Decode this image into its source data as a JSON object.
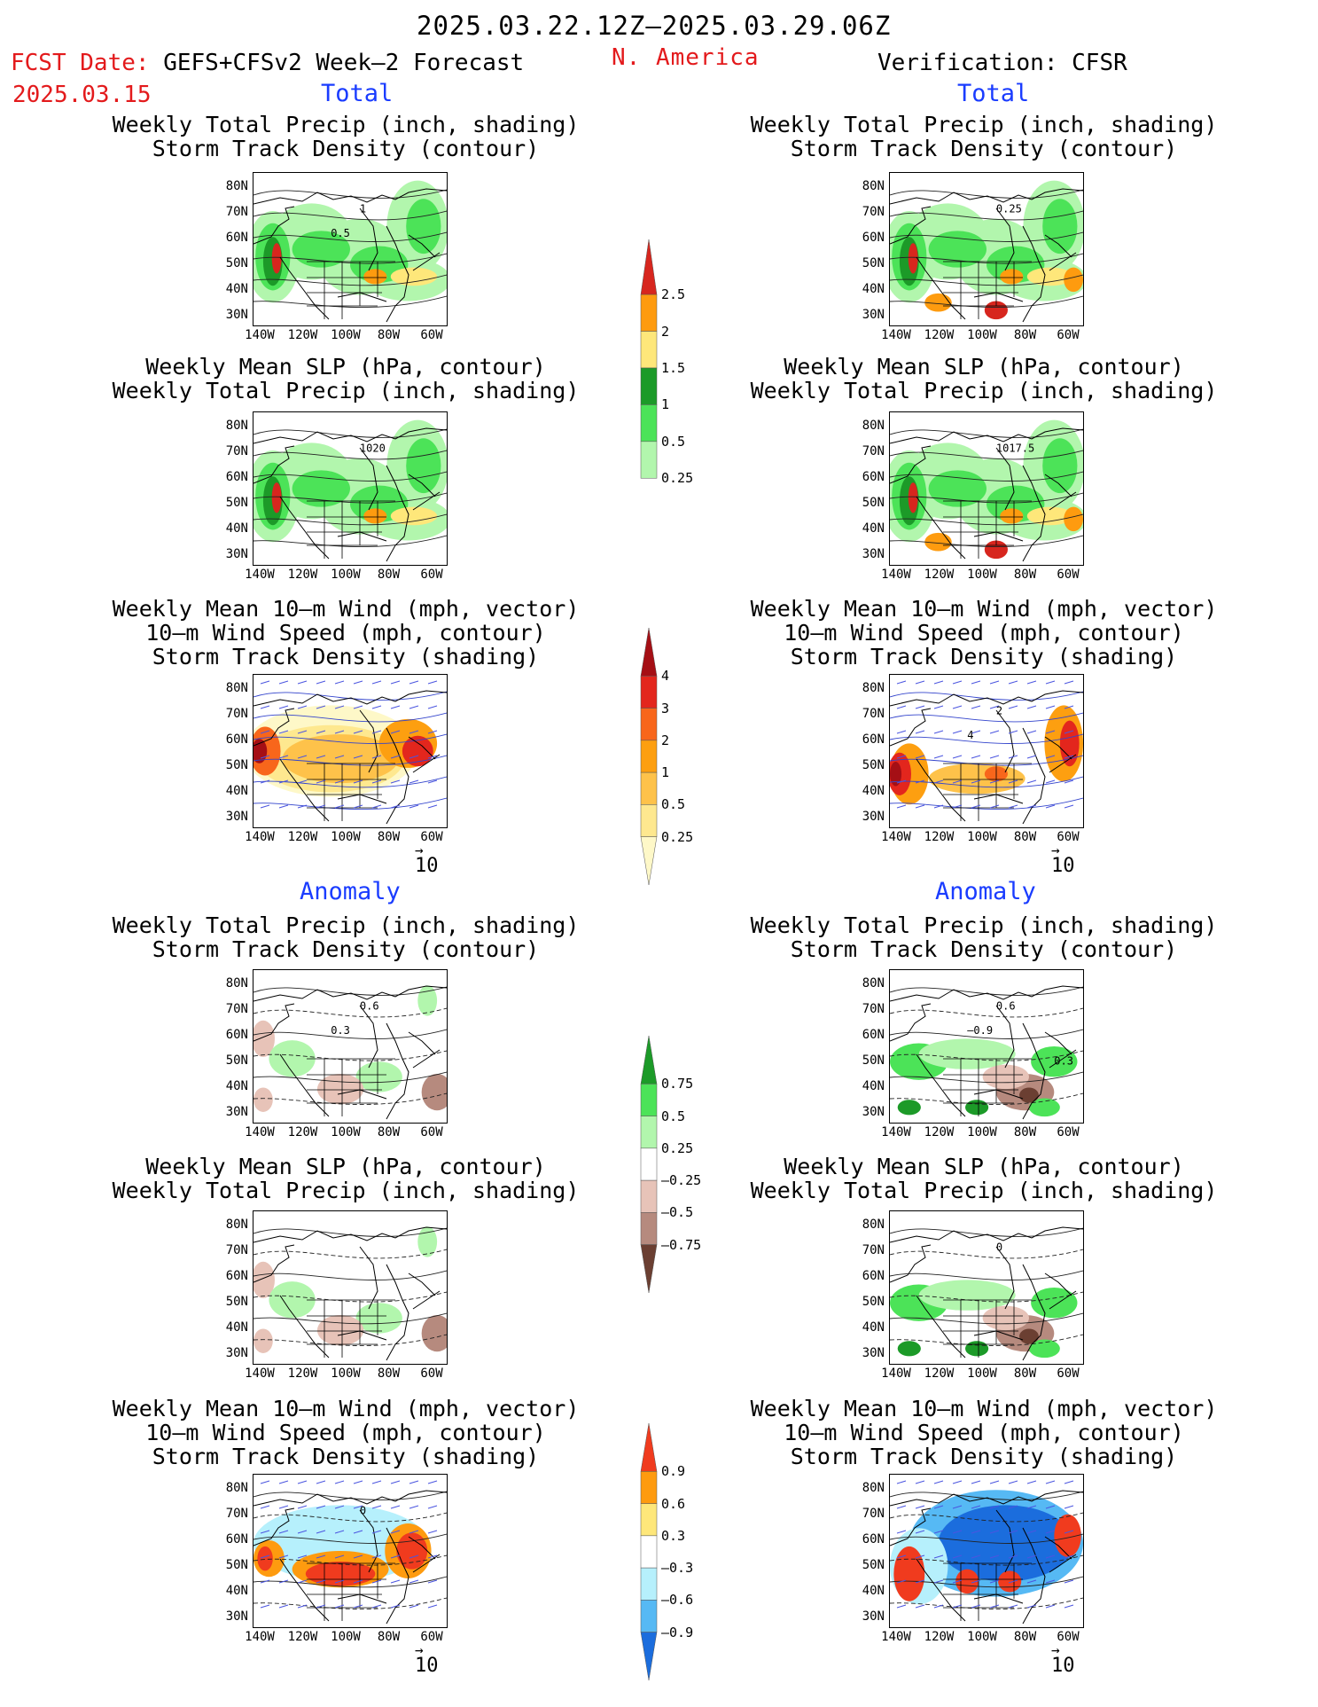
{
  "header": {
    "date_range": "2025.03.22.12Z–2025.03.29.06Z",
    "fcst_label": "FCST Date:",
    "fcst_model": "GEFS+CFSv2 Week–2 Forecast",
    "fcst_date": "2025.03.15",
    "region": "N. America",
    "verification": "Verification: CFSR"
  },
  "sections": {
    "total": "Total",
    "anomaly": "Anomaly"
  },
  "titles": {
    "precip_storm": [
      "Weekly Total Precip (inch, shading)",
      "Storm Track Density (contour)"
    ],
    "slp_precip": [
      "Weekly Mean SLP (hPa, contour)",
      "Weekly Total Precip (inch, shading)"
    ],
    "wind_storm": [
      "Weekly Mean 10–m Wind (mph, vector)",
      "10–m Wind Speed (mph, contour)",
      "Storm Track Density (shading)"
    ]
  },
  "axes": {
    "lat_labels": [
      "80N",
      "70N",
      "60N",
      "50N",
      "40N",
      "30N"
    ],
    "lon_labels": [
      "140W",
      "120W",
      "100W",
      "80W",
      "60W"
    ]
  },
  "contour_labels": {
    "f_total_precip": [
      "1",
      "0.5"
    ],
    "v_total_precip": [
      "0.25"
    ],
    "f_total_slp": [
      "1020"
    ],
    "v_total_slp": [
      "1017.5"
    ],
    "v_total_wind": [
      "2",
      "4"
    ],
    "f_anom_precip": [
      "0.6",
      "0.3"
    ],
    "v_anom_precip": [
      "0.6",
      "–0.9",
      "0.3"
    ],
    "v_anom_slp": [
      "0"
    ],
    "f_anom_wind": [
      "0"
    ]
  },
  "vector_ref": "10",
  "colorbars": {
    "precip_total": {
      "labels": [
        "2.5",
        "2",
        "1.5",
        "1",
        "0.5",
        "0.25"
      ],
      "colors": [
        "#d7261e",
        "#fe9b0f",
        "#fee77a",
        "#1c9a28",
        "#4ce358",
        "#b2f6ad"
      ]
    },
    "storm_total": {
      "labels": [
        "4",
        "3",
        "2",
        "1",
        "0.5",
        "0.25"
      ],
      "colors": [
        "#a50f15",
        "#e3261d",
        "#f8661b",
        "#fd9f10",
        "#fec24a",
        "#fee88f",
        "#fef8c8"
      ]
    },
    "precip_anom": {
      "labels": [
        "0.75",
        "0.5",
        "0.25",
        "–0.25",
        "–0.5",
        "–0.75"
      ],
      "colors": [
        "#1c9a28",
        "#4ce358",
        "#b2f6ad",
        "#ffffff",
        "#e7c3b8",
        "#b68a7e",
        "#6b3f32"
      ]
    },
    "storm_anom": {
      "labels": [
        "0.9",
        "0.6",
        "0.3",
        "–0.3",
        "–0.6",
        "–0.9"
      ],
      "colors": [
        "#f03b1e",
        "#fe9b0f",
        "#fee77a",
        "#ffffff",
        "#b6f0fc",
        "#56b9f4",
        "#1b6ddd"
      ]
    }
  }
}
